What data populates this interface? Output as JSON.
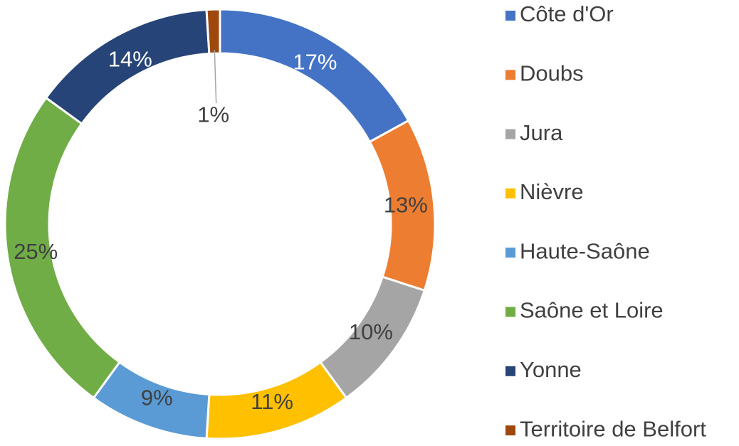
{
  "chart_data": {
    "type": "donut",
    "categories": [
      "Côte d'Or",
      "Doubs",
      "Jura",
      "Nièvre",
      "Haute-Saône",
      "Saône et Loire",
      "Yonne",
      "Territoire de Belfort"
    ],
    "values": [
      17,
      13,
      10,
      11,
      9,
      25,
      14,
      1
    ],
    "value_labels": [
      "17%",
      "13%",
      "10%",
      "11%",
      "9%",
      "25%",
      "14%",
      "1%"
    ],
    "colors": [
      "#4472c4",
      "#ed7d31",
      "#a5a5a5",
      "#ffc000",
      "#5b9bd5",
      "#70ad47",
      "#264478",
      "#9e480e"
    ],
    "legend": "right"
  }
}
